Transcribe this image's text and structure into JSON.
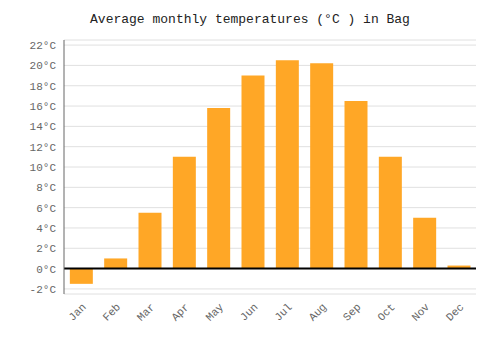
{
  "chart_data": {
    "type": "bar",
    "title": "Average monthly temperatures (°C ) in Bag",
    "categories": [
      "Jan",
      "Feb",
      "Mar",
      "Apr",
      "May",
      "Jun",
      "Jul",
      "Aug",
      "Sep",
      "Oct",
      "Nov",
      "Dec"
    ],
    "values": [
      -1.5,
      1.0,
      5.5,
      11.0,
      15.8,
      19.0,
      20.5,
      20.2,
      16.5,
      11.0,
      5.0,
      0.3
    ],
    "color": "#FFA726",
    "ylim": [
      -2.5,
      22.5
    ],
    "yticks": [
      {
        "value": -2,
        "label": "-2°C"
      },
      {
        "value": 0,
        "label": "0°C"
      },
      {
        "value": 2,
        "label": "2°C"
      },
      {
        "value": 4,
        "label": "4°C"
      },
      {
        "value": 6,
        "label": "6°C"
      },
      {
        "value": 8,
        "label": "8°C"
      },
      {
        "value": 10,
        "label": "10°C"
      },
      {
        "value": 12,
        "label": "12°C"
      },
      {
        "value": 14,
        "label": "14°C"
      },
      {
        "value": 16,
        "label": "16°C"
      },
      {
        "value": 18,
        "label": "18°C"
      },
      {
        "value": 20,
        "label": "20°C"
      },
      {
        "value": 22,
        "label": "22°C"
      }
    ],
    "grid": true
  }
}
